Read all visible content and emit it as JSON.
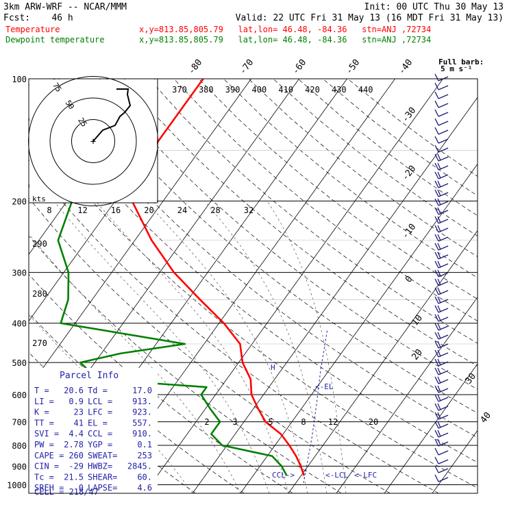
{
  "header": {
    "line1_left": "3km ARW-WRF -- NCAR/MMM",
    "line1_right": "Init: 00 UTC Thu 30 May 13",
    "line2_left": "Fcst:    46 h",
    "line2_right": "Valid: 22 UTC Fri 31 May 13 (16 MDT Fri 31 May 13)",
    "temp_label": "Temperature",
    "dew_label": "Dewpoint temperature",
    "location_info": "x,y=813.85,805.79   lat,lon= 46.48, -84.36   stn=ANJ ,72734",
    "colors": {
      "temperature": "#ff0000",
      "dewpoint": "#008000",
      "info": "#2222aa"
    }
  },
  "chart_data": [
    {
      "type": "skew-t",
      "pressure_levels": [
        "100",
        "200",
        "300",
        "400",
        "500",
        "600",
        "700",
        "800",
        "900",
        "1000"
      ],
      "isotherm_labels": [
        "-80",
        "-70",
        "-60",
        "-50",
        "-40",
        "-30",
        "-20",
        "-10",
        "0",
        "10",
        "20",
        "30",
        "40"
      ],
      "theta_labels": [
        "290",
        "280",
        "270"
      ],
      "theta_e_labels": [
        "370",
        "380",
        "390",
        "400",
        "410",
        "420",
        "430",
        "440"
      ],
      "mixing_ratio_labels": [
        "2",
        "3",
        "5",
        "8",
        "12",
        "20"
      ],
      "series": [
        {
          "name": "Temperature",
          "color": "#ff0000",
          "points": [
            [
              100,
              -60.0
            ],
            [
              150,
              -60.0
            ],
            [
              175,
              -58.5
            ],
            [
              200,
              -56.5
            ],
            [
              250,
              -46.5
            ],
            [
              300,
              -37.0
            ],
            [
              350,
              -27.5
            ],
            [
              400,
              -19.0
            ],
            [
              450,
              -12.5
            ],
            [
              500,
              -9.2
            ],
            [
              550,
              -5.0
            ],
            [
              600,
              -2.5
            ],
            [
              650,
              1.0
            ],
            [
              700,
              4.5
            ],
            [
              750,
              9.5
            ],
            [
              800,
              13.0
            ],
            [
              850,
              16.0
            ],
            [
              900,
              18.5
            ],
            [
              950,
              20.6
            ]
          ]
        },
        {
          "name": "Dewpoint temperature",
          "color": "#008000",
          "points": [
            [
              100,
              -91
            ],
            [
              125,
              -90
            ],
            [
              150,
              -94
            ],
            [
              175,
              -86
            ],
            [
              200,
              -69
            ],
            [
              250,
              -66
            ],
            [
              300,
              -59
            ],
            [
              350,
              -55
            ],
            [
              400,
              -53
            ],
            [
              450,
              -24
            ],
            [
              475,
              -36
            ],
            [
              500,
              -43
            ],
            [
              550,
              -37
            ],
            [
              575,
              -13
            ],
            [
              600,
              -13
            ],
            [
              650,
              -9
            ],
            [
              700,
              -5
            ],
            [
              750,
              -5
            ],
            [
              800,
              -1
            ],
            [
              850,
              11
            ],
            [
              900,
              14.5
            ],
            [
              950,
              17.0
            ]
          ]
        }
      ],
      "labels": {
        "el": "<-EL",
        "ccl": "CCL->",
        "lcl": "<-LCL",
        "lfc": "<-LFC",
        "wind_units": "Full barb:",
        "wind_units2": "5 m s⁻¹"
      }
    },
    {
      "type": "hodograph",
      "rings": [
        "75",
        "50",
        "25"
      ],
      "speed_axis_label": "kts",
      "speed_ticks": [
        "8",
        "12",
        "16",
        "20",
        "24",
        "28",
        "32"
      ],
      "hodograph_color": "#000000"
    }
  ],
  "parcel_info": {
    "title": "Parcel Info",
    "rows": [
      [
        "T =",
        "20.6",
        "Td =",
        "17.0"
      ],
      [
        "LI =",
        "0.9",
        "LCL =",
        "913."
      ],
      [
        "K =",
        "23",
        "LFC =",
        "923."
      ],
      [
        "TT =",
        "41",
        "EL =",
        "557."
      ],
      [
        "SVI =",
        "4.4",
        "CCL =",
        "910."
      ],
      [
        "PW =",
        "2.78",
        "YGP =",
        "0.1"
      ],
      [
        "CAPE =",
        "260",
        "SWEAT=",
        "253"
      ],
      [
        "CIN =",
        "-29",
        "HWBZ=",
        "2845."
      ],
      [
        "Tc =",
        "21.5",
        "SHEAR=",
        "60."
      ],
      [
        "SREH =",
        "0",
        "LAPSE=",
        "4.6"
      ]
    ],
    "cell": "CELL = 218/47"
  }
}
